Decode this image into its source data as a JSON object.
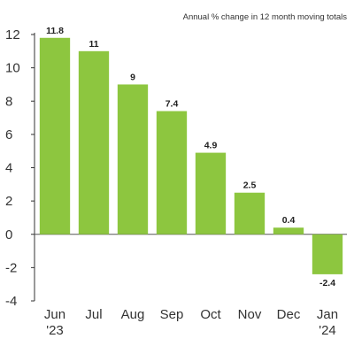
{
  "chart_data": {
    "type": "bar",
    "subtitle": "Annual % change in 12 month moving totals",
    "categories": [
      {
        "month": "Jun",
        "year": "'23"
      },
      {
        "month": "Jul",
        "year": ""
      },
      {
        "month": "Aug",
        "year": ""
      },
      {
        "month": "Sep",
        "year": ""
      },
      {
        "month": "Oct",
        "year": ""
      },
      {
        "month": "Nov",
        "year": ""
      },
      {
        "month": "Dec",
        "year": ""
      },
      {
        "month": "Jan",
        "year": "'24"
      }
    ],
    "values": [
      11.8,
      11,
      9,
      7.4,
      4.9,
      2.5,
      0.4,
      -2.4
    ],
    "data_labels": [
      "11.8",
      "11",
      "9",
      "7.4",
      "4.9",
      "2.5",
      "0.4",
      "-2.4"
    ],
    "yticks": [
      12,
      10,
      8,
      6,
      4,
      2,
      0,
      -2,
      -4
    ],
    "ylim": [
      -4,
      12
    ],
    "bar_color": "#8DC63F",
    "grid": false
  }
}
